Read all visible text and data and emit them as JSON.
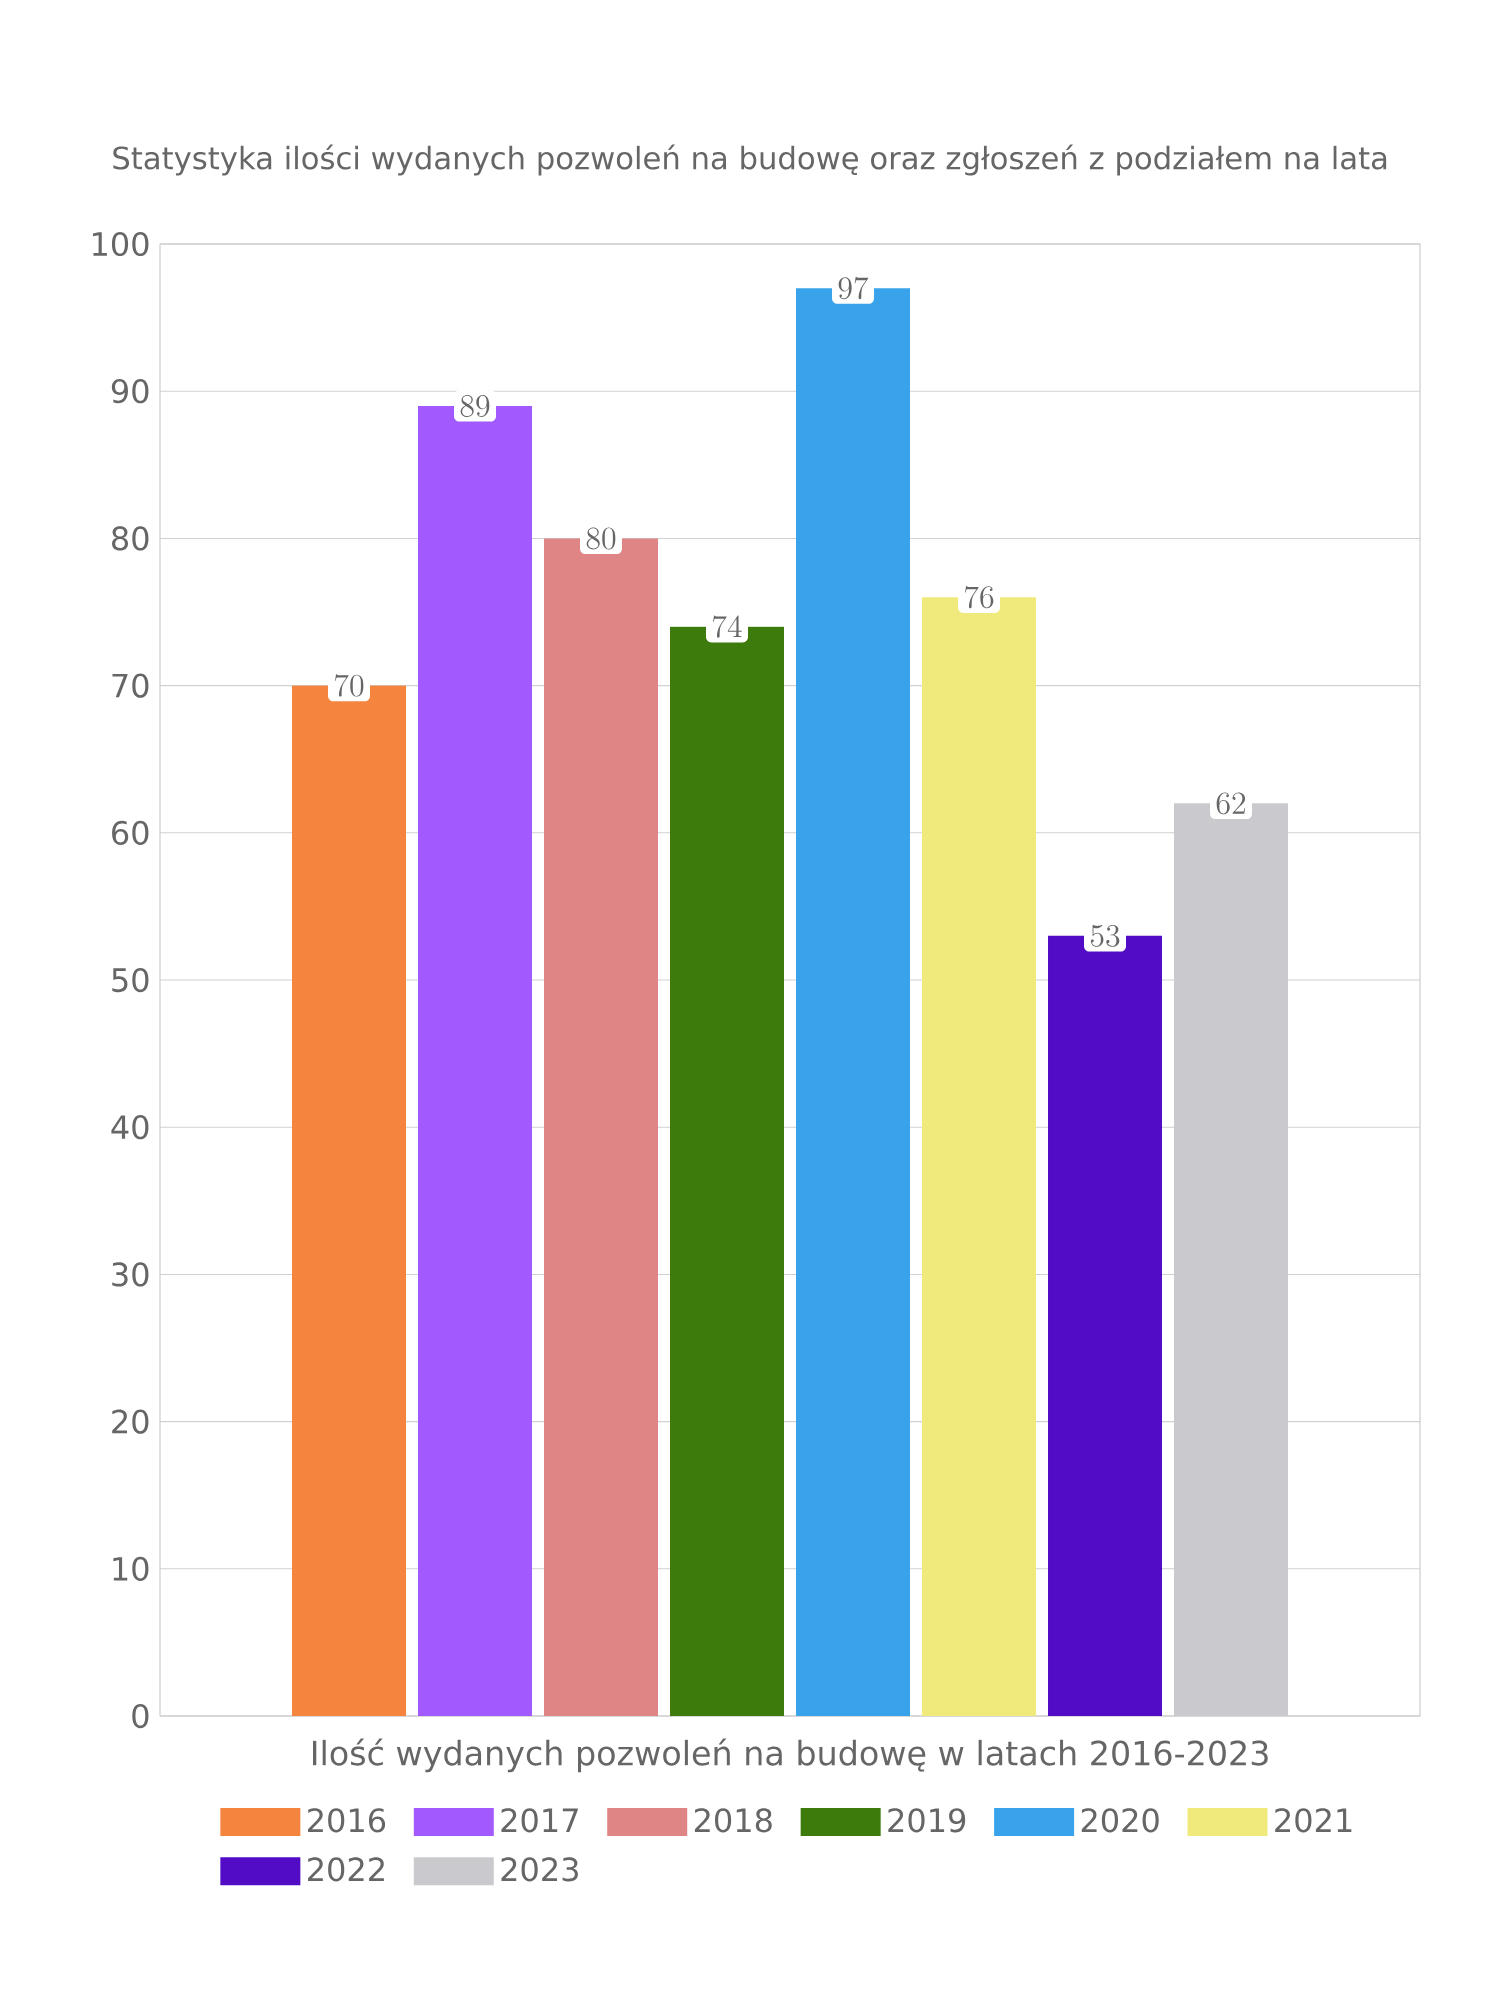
{
  "chart_data": {
    "type": "bar",
    "title": "Statystyka ilości wydanych pozwoleń na budowę oraz zgłoszeń z podziałem na lata",
    "xlabel": "Ilość wydanych pozwoleń na budowę w latach 2016-2023",
    "categories": [
      null
    ],
    "series": [
      {
        "name": "2016",
        "color": "#f5843f",
        "values": [
          70
        ]
      },
      {
        "name": "2017",
        "color": "#a259fd",
        "values": [
          89
        ]
      },
      {
        "name": "2018",
        "color": "#e08585",
        "values": [
          80
        ]
      },
      {
        "name": "2019",
        "color": "#3d7b0c",
        "values": [
          74
        ]
      },
      {
        "name": "2020",
        "color": "#38a3eb",
        "values": [
          97
        ]
      },
      {
        "name": "2021",
        "color": "#f0ea7c",
        "values": [
          76
        ]
      },
      {
        "name": "2022",
        "color": "#520cc5",
        "values": [
          53
        ]
      },
      {
        "name": "2023",
        "color": "#cacace",
        "values": [
          62
        ]
      }
    ],
    "ylim": [
      0,
      100
    ],
    "yticks": [
      0,
      10,
      20,
      30,
      40,
      50,
      60,
      70,
      80,
      90,
      100
    ],
    "grid": "y",
    "legend": "bottom",
    "data_labels": true
  }
}
